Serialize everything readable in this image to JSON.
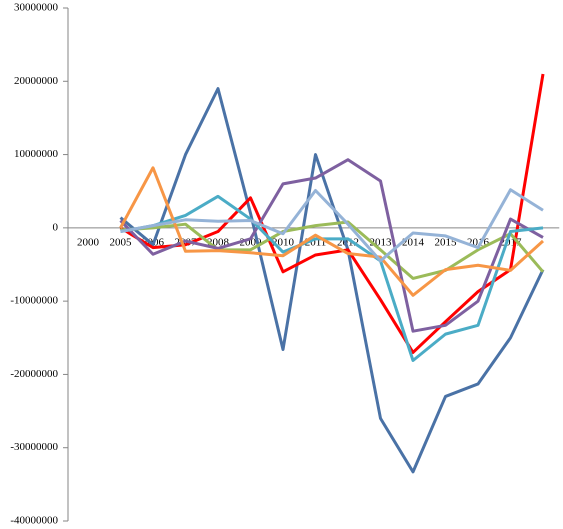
{
  "chart_data": {
    "type": "line",
    "categories": [
      "2000",
      "2005",
      "2006",
      "2007",
      "2008",
      "2009",
      "2010",
      "2011",
      "2012",
      "2013",
      "2014",
      "2015",
      "2016",
      "2017",
      null
    ],
    "series": [
      {
        "color": "#4a72a6",
        "values": [
          null,
          1400000,
          -2300000,
          10000000,
          19000000,
          2000000,
          -16600000,
          10000000,
          -3000000,
          -26000000,
          -33300000,
          -23000000,
          -21300000,
          -15000000,
          -5700000
        ]
      },
      {
        "color": "#ff0000",
        "values": [
          null,
          0,
          -2700000,
          -2300000,
          -500000,
          4100000,
          -6000000,
          -3700000,
          -3000000,
          -9800000,
          -17000000,
          -12800000,
          -8700000,
          -5700000,
          21000000
        ]
      },
      {
        "color": "#9bbb59",
        "values": [
          null,
          -300000,
          0,
          500000,
          -3000000,
          -3000000,
          -500000,
          300000,
          800000,
          -3000000,
          -6900000,
          -5800000,
          -3000000,
          -800000,
          -6000000
        ]
      },
      {
        "color": "#7e60a0",
        "values": [
          null,
          1000000,
          -3600000,
          -1800000,
          -2800000,
          -1500000,
          6000000,
          6800000,
          9300000,
          6400000,
          -14100000,
          -13300000,
          -10000000,
          1200000,
          -1300000
        ]
      },
      {
        "color": "#4bacc6",
        "values": [
          null,
          -500000,
          300000,
          1700000,
          4300000,
          1200000,
          -3300000,
          -1500000,
          -1500000,
          -4500000,
          -18100000,
          -14500000,
          -13300000,
          -500000,
          0
        ]
      },
      {
        "color": "#f79646",
        "values": [
          null,
          0,
          8200000,
          -3200000,
          -3100000,
          -3400000,
          -3800000,
          -1000000,
          -3500000,
          -4000000,
          -9200000,
          -5700000,
          -5100000,
          -5800000,
          -1800000
        ]
      },
      {
        "color": "#95b3d7",
        "values": [
          null,
          -500000,
          300000,
          1100000,
          900000,
          1000000,
          -800000,
          5100000,
          500000,
          -4500000,
          -700000,
          -1100000,
          -2700000,
          5200000,
          2400000
        ]
      }
    ],
    "ylim": [
      -40000000,
      30000000
    ],
    "yticks": [
      -40000000,
      -30000000,
      -20000000,
      -10000000,
      0,
      10000000,
      20000000,
      30000000
    ],
    "grid": false
  }
}
